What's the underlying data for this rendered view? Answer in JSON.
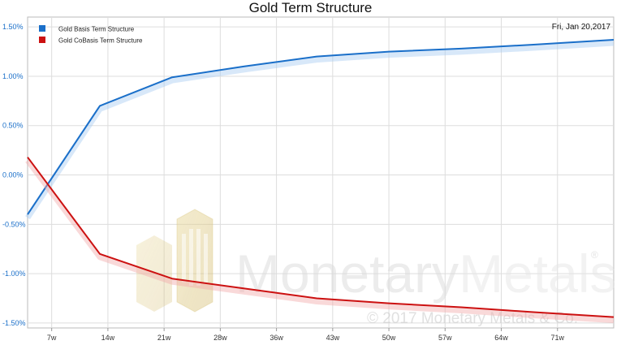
{
  "chart_data": {
    "type": "line",
    "title": "Gold Term Structure",
    "date": "Fri, Jan 20,2017",
    "x_tick_labels": [
      "7w",
      "14w",
      "21w",
      "28w",
      "36w",
      "43w",
      "50w",
      "57w",
      "64w",
      "71w"
    ],
    "y_tick_labels": [
      "1.50%",
      "1.00%",
      "0.50%",
      "0.00%",
      "-0.50%",
      "-1.00%",
      "-1.50%"
    ],
    "y_ticks": [
      1.5,
      1.0,
      0.5,
      0.0,
      -0.5,
      -1.0,
      -1.5
    ],
    "ylim": [
      -1.55,
      1.6
    ],
    "xlim": [
      4,
      77
    ],
    "grid": true,
    "legend_position": "top-left",
    "series": [
      {
        "name": "Gold Basis Term Structure",
        "color": "#1a6fc9",
        "x": [
          4,
          13,
          22,
          31,
          40,
          49,
          58,
          67,
          77
        ],
        "y": [
          -0.4,
          0.7,
          0.99,
          1.1,
          1.2,
          1.25,
          1.28,
          1.32,
          1.37
        ]
      },
      {
        "name": "Gold CoBasis Term Structure",
        "color": "#cc1111",
        "x": [
          4,
          13,
          22,
          31,
          40,
          49,
          58,
          67,
          77
        ],
        "y": [
          0.18,
          -0.8,
          -1.05,
          -1.15,
          -1.25,
          -1.3,
          -1.34,
          -1.39,
          -1.44
        ]
      }
    ]
  },
  "watermark": {
    "brand": "MonetaryMetals",
    "brand_part1": "Monetary",
    "brand_part2": "Metals",
    "registered": "®",
    "copyright": "© 2017 Monetary Metals & Co."
  }
}
